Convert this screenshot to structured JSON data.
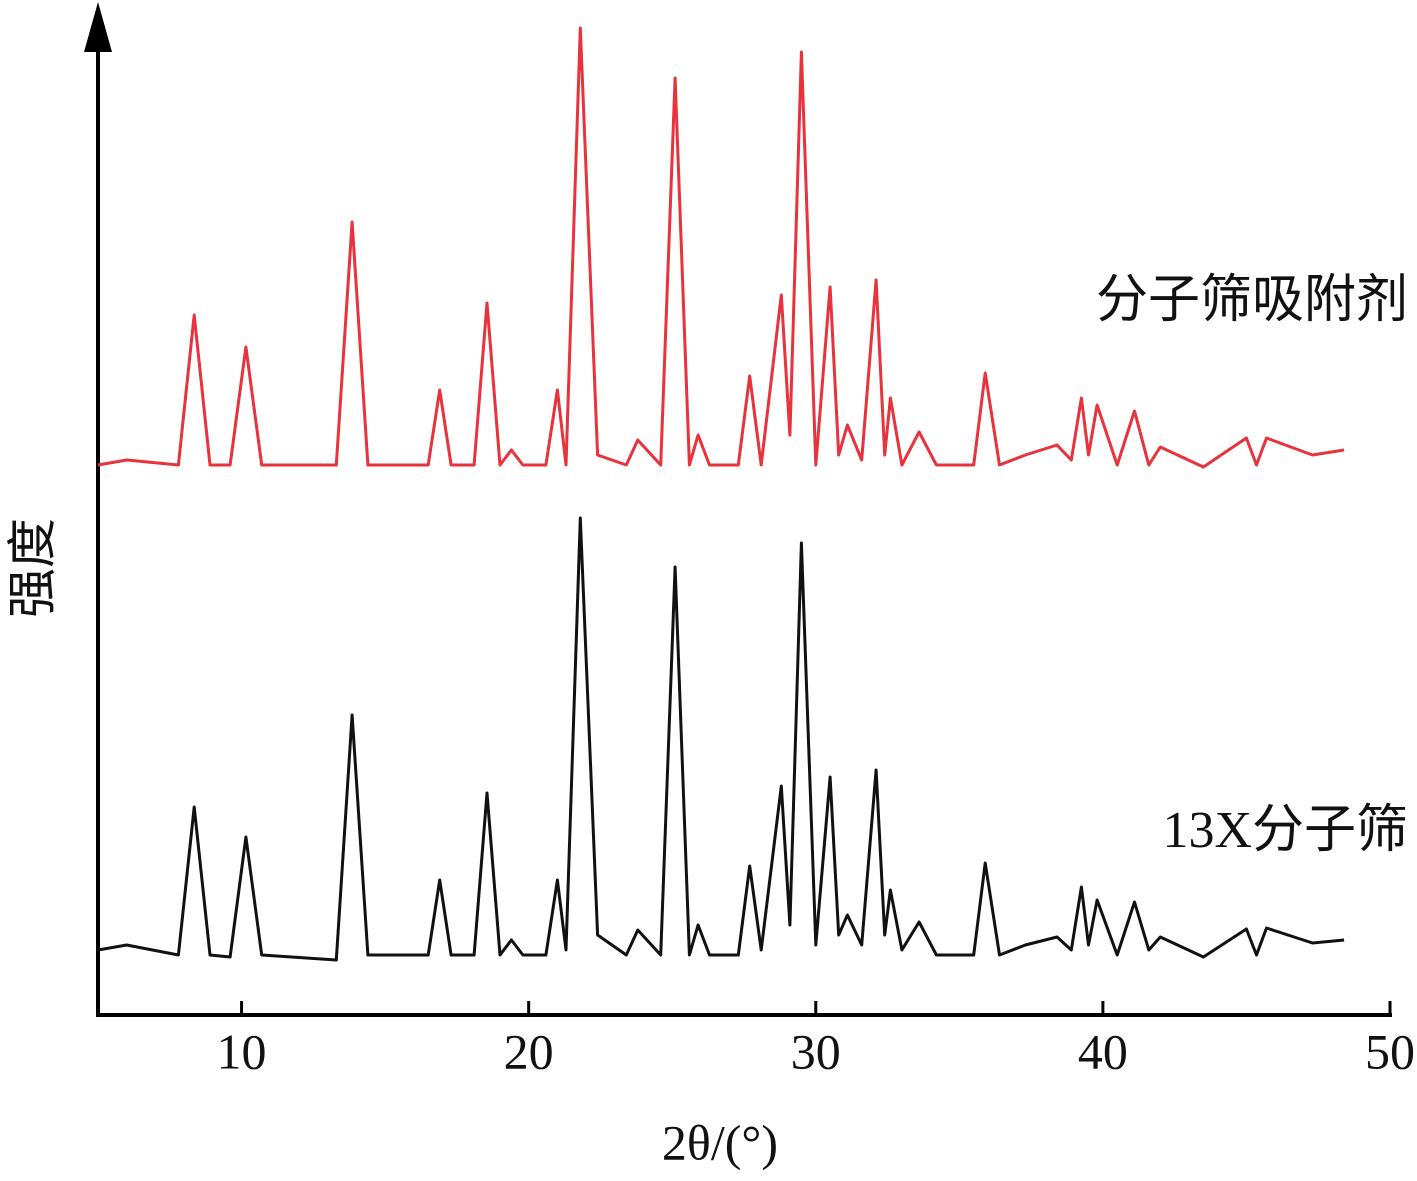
{
  "chart_data": {
    "type": "line",
    "xlabel": "2θ/(°)",
    "ylabel": "强度",
    "xlim": [
      5,
      50
    ],
    "xticks": [
      10,
      20,
      30,
      40,
      50
    ],
    "ylim": [
      0,
      100
    ],
    "x": [
      5.0,
      6.0,
      7.8,
      8.35,
      8.9,
      9.6,
      10.15,
      10.7,
      13.3,
      13.85,
      14.4,
      16.5,
      16.9,
      17.3,
      18.1,
      18.55,
      19.0,
      19.4,
      19.8,
      20.6,
      21.0,
      21.3,
      21.8,
      22.4,
      23.4,
      23.8,
      24.6,
      25.1,
      25.6,
      25.9,
      26.3,
      27.3,
      27.7,
      28.1,
      28.8,
      29.1,
      29.5,
      30.0,
      30.5,
      30.8,
      31.1,
      31.6,
      32.1,
      32.4,
      32.6,
      33.0,
      33.6,
      34.2,
      35.5,
      35.9,
      36.4,
      37.3,
      38.4,
      38.9,
      39.25,
      39.5,
      39.8,
      40.5,
      41.1,
      41.6,
      42.0,
      43.5,
      45.0,
      45.35,
      45.7,
      47.3,
      48.4
    ],
    "series": [
      {
        "name": "分子筛吸附剂",
        "color": "#e8323c",
        "values": [
          55.0,
          55.5,
          55.0,
          70.0,
          55.0,
          55.0,
          66.8,
          55.0,
          55.0,
          79.3,
          55.0,
          55.0,
          62.5,
          55.0,
          55.0,
          71.2,
          55.0,
          56.5,
          55.0,
          55.0,
          62.5,
          55.0,
          98.7,
          56.0,
          55.0,
          57.5,
          55.0,
          93.7,
          55.0,
          58.0,
          55.0,
          55.0,
          63.9,
          55.0,
          72.0,
          58.0,
          96.3,
          55.0,
          72.8,
          56.0,
          59.0,
          55.5,
          73.5,
          56.0,
          61.7,
          55.0,
          58.3,
          55.0,
          55.0,
          64.2,
          55.0,
          56.0,
          57.0,
          55.5,
          61.7,
          56.0,
          61.0,
          55.0,
          60.4,
          55.0,
          56.8,
          54.8,
          57.7,
          55.0,
          57.7,
          56.0,
          56.5
        ]
      },
      {
        "name": "13X分子筛",
        "color": "#111111",
        "values": [
          6.5,
          7.0,
          6.0,
          20.8,
          6.0,
          5.8,
          17.8,
          6.0,
          5.5,
          30.0,
          6.0,
          6.0,
          13.5,
          6.0,
          6.0,
          22.2,
          6.0,
          7.5,
          6.0,
          6.0,
          13.5,
          6.5,
          49.7,
          8.0,
          6.0,
          8.5,
          6.0,
          44.8,
          6.0,
          9.0,
          6.0,
          6.0,
          14.9,
          6.5,
          22.9,
          9.0,
          47.2,
          7.0,
          23.8,
          8.0,
          10.0,
          7.0,
          24.5,
          8.0,
          12.5,
          6.5,
          9.3,
          6.0,
          6.0,
          15.2,
          6.0,
          7.0,
          7.8,
          6.5,
          12.8,
          7.0,
          11.5,
          6.0,
          11.3,
          6.5,
          7.8,
          5.8,
          8.6,
          6.0,
          8.7,
          7.2,
          7.5
        ]
      }
    ]
  }
}
